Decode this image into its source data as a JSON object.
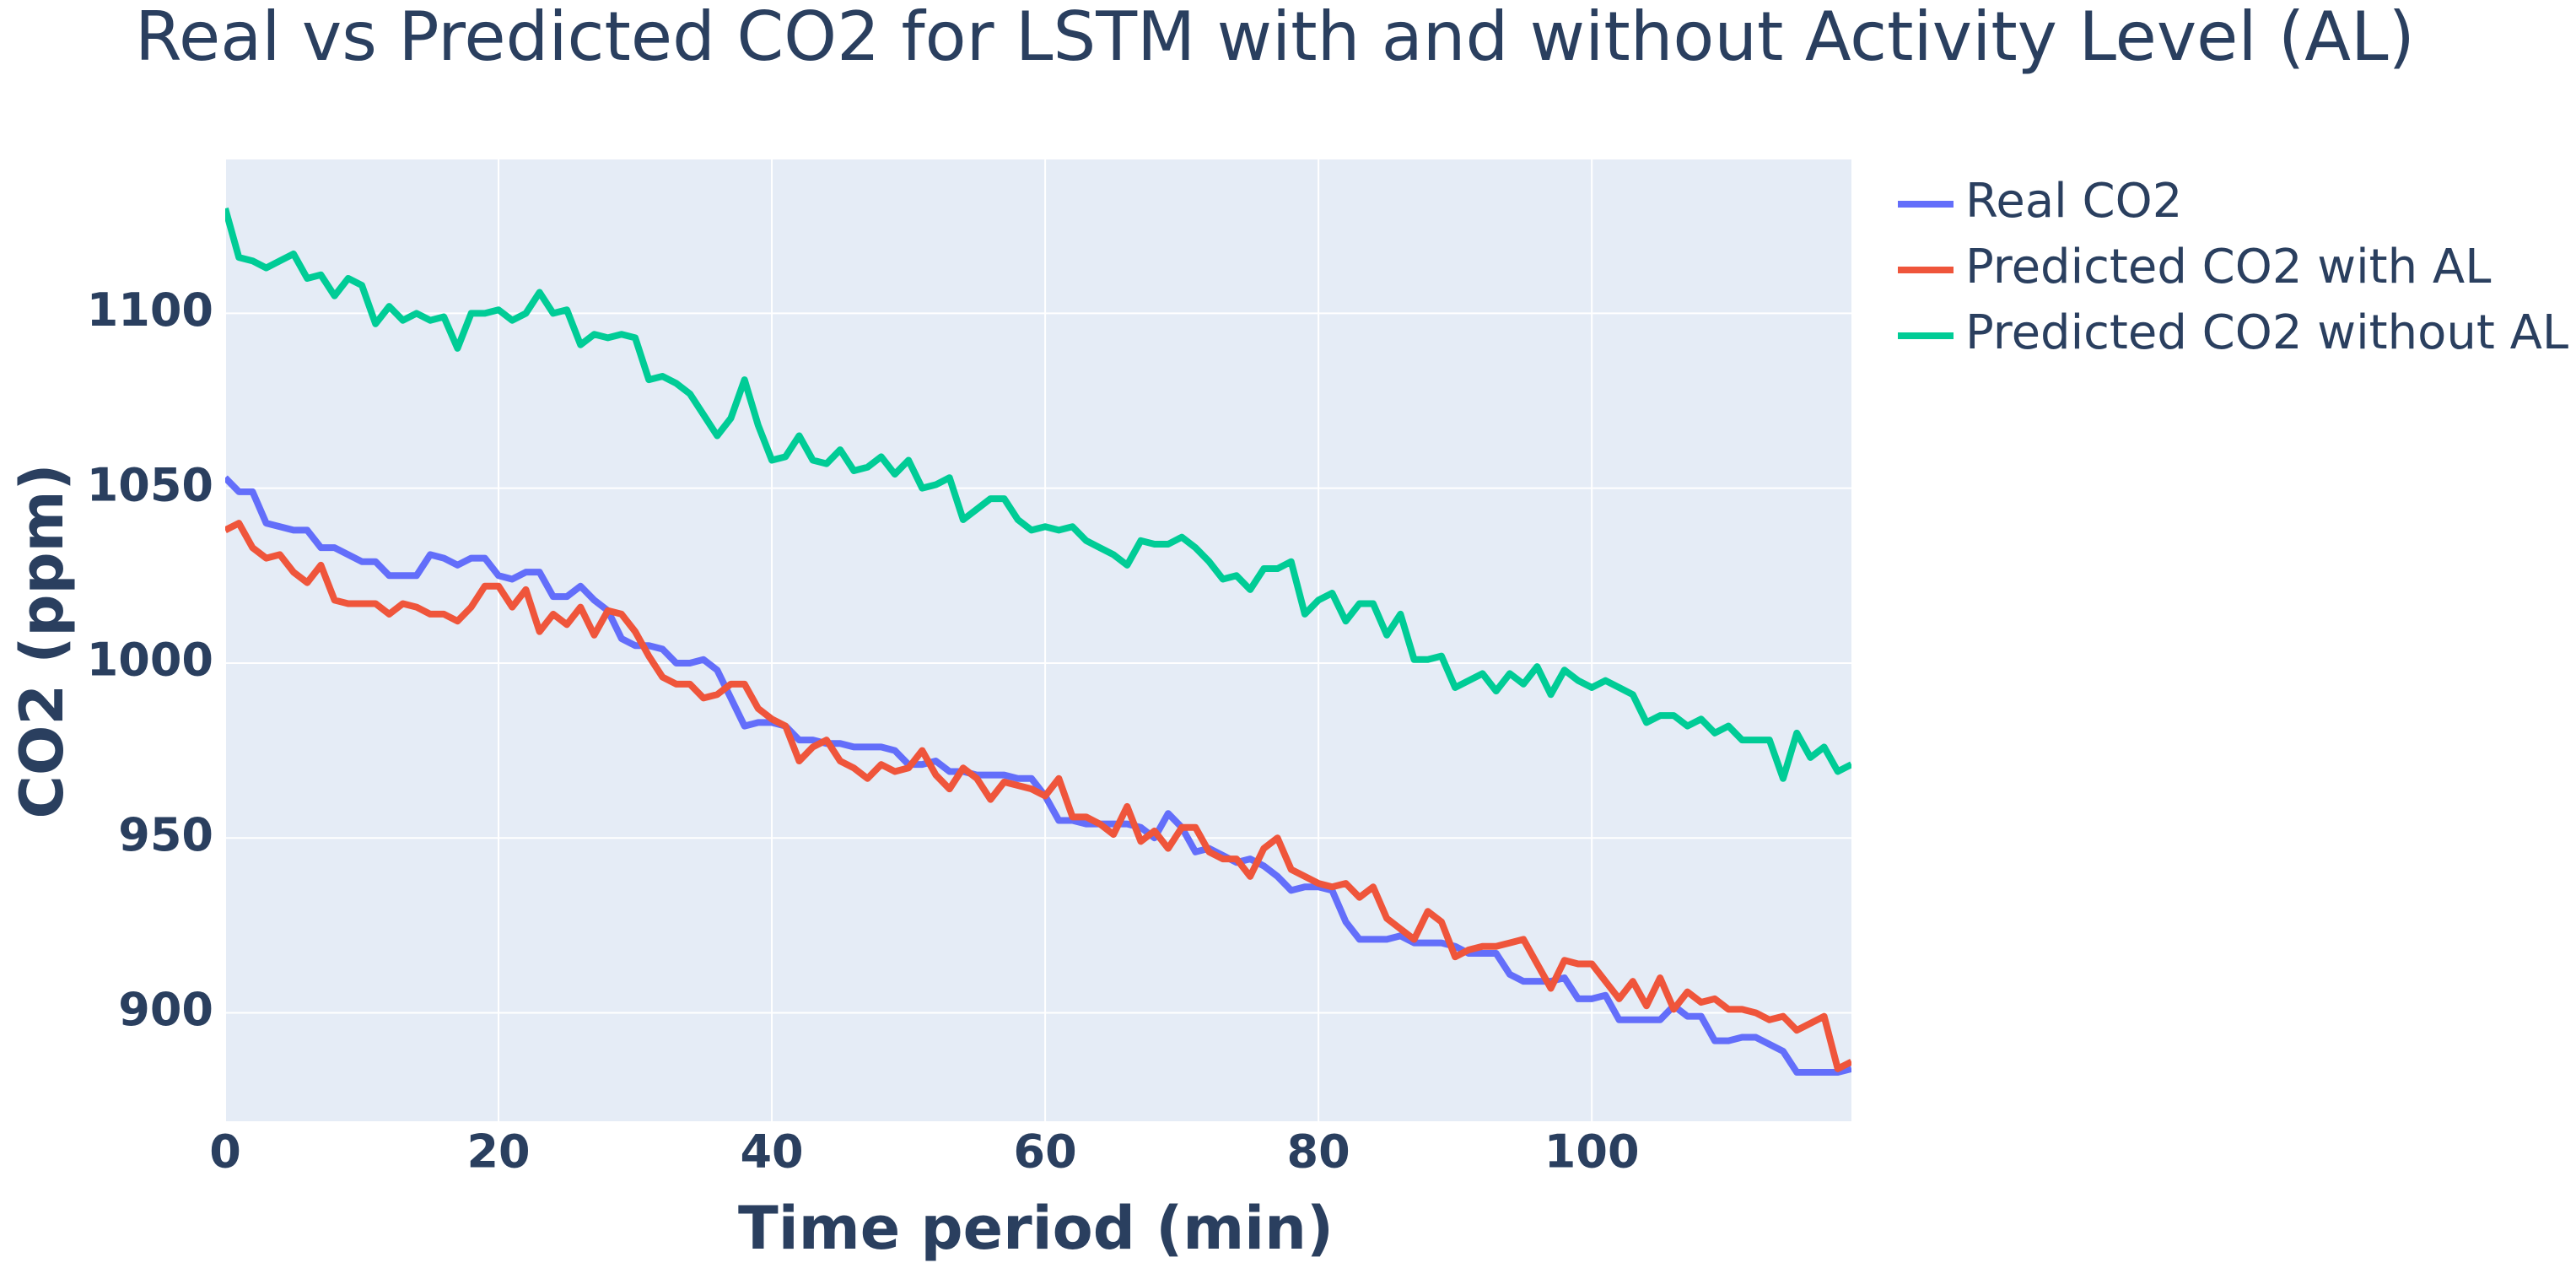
{
  "chart_data": {
    "type": "line",
    "title": "Real vs Predicted CO2 for LSTM with and without Activity Level (AL)",
    "x_label": "Time period (min)",
    "y_label": "CO2 (ppm)",
    "x": [
      0,
      1,
      2,
      3,
      4,
      5,
      6,
      7,
      8,
      9,
      10,
      11,
      12,
      13,
      14,
      15,
      16,
      17,
      18,
      19,
      20,
      21,
      22,
      23,
      24,
      25,
      26,
      27,
      28,
      29,
      30,
      31,
      32,
      33,
      34,
      35,
      36,
      37,
      38,
      39,
      40,
      41,
      42,
      43,
      44,
      45,
      46,
      47,
      48,
      49,
      50,
      51,
      52,
      53,
      54,
      55,
      56,
      57,
      58,
      59,
      60,
      61,
      62,
      63,
      64,
      65,
      66,
      67,
      68,
      69,
      70,
      71,
      72,
      73,
      74,
      75,
      76,
      77,
      78,
      79,
      80,
      81,
      82,
      83,
      84,
      85,
      86,
      87,
      88,
      89,
      90,
      91,
      92,
      93,
      94,
      95,
      96,
      97,
      98,
      99,
      100,
      101,
      102,
      103,
      104,
      105,
      106,
      107,
      108,
      109,
      110,
      111,
      112,
      113,
      114,
      115,
      116,
      117,
      118,
      119
    ],
    "series": [
      {
        "name": "Real CO2",
        "color": "#636efa",
        "values": [
          1053,
          1049,
          1049,
          1040,
          1039,
          1038,
          1038,
          1033,
          1033,
          1031,
          1029,
          1029,
          1025,
          1025,
          1025,
          1031,
          1030,
          1028,
          1030,
          1030,
          1025,
          1024,
          1026,
          1026,
          1019,
          1019,
          1022,
          1018,
          1015,
          1007,
          1005,
          1005,
          1004,
          1000,
          1000,
          1001,
          998,
          990,
          982,
          983,
          983,
          982,
          978,
          978,
          977,
          977,
          976,
          976,
          976,
          975,
          971,
          971,
          972,
          969,
          969,
          968,
          968,
          968,
          967,
          967,
          962,
          955,
          955,
          954,
          954,
          954,
          954,
          953,
          950,
          957,
          953,
          946,
          947,
          945,
          943,
          944,
          942,
          939,
          935,
          936,
          936,
          935,
          926,
          921,
          921,
          921,
          922,
          920,
          920,
          920,
          919,
          917,
          917,
          917,
          911,
          909,
          909,
          909,
          910,
          904,
          904,
          905,
          898,
          898,
          898,
          898,
          902,
          899,
          899,
          892,
          892,
          893,
          893,
          891,
          889,
          883,
          883,
          883,
          883,
          884
        ]
      },
      {
        "name": "Predicted CO2 with AL",
        "color": "#ef553b",
        "values": [
          1038,
          1040,
          1033,
          1030,
          1031,
          1026,
          1023,
          1028,
          1018,
          1017,
          1017,
          1017,
          1014,
          1017,
          1016,
          1014,
          1014,
          1012,
          1016,
          1022,
          1022,
          1016,
          1021,
          1009,
          1014,
          1011,
          1016,
          1008,
          1015,
          1014,
          1009,
          1002,
          996,
          994,
          994,
          990,
          991,
          994,
          994,
          987,
          984,
          982,
          972,
          976,
          978,
          972,
          970,
          967,
          971,
          969,
          970,
          975,
          968,
          964,
          970,
          967,
          961,
          966,
          965,
          964,
          962,
          967,
          956,
          956,
          954,
          951,
          959,
          949,
          952,
          947,
          953,
          953,
          946,
          944,
          944,
          939,
          947,
          950,
          941,
          939,
          937,
          936,
          937,
          933,
          936,
          927,
          924,
          921,
          929,
          926,
          916,
          918,
          919,
          919,
          920,
          921,
          914,
          907,
          915,
          914,
          914,
          909,
          904,
          909,
          902,
          910,
          901,
          906,
          903,
          904,
          901,
          901,
          900,
          898,
          899,
          895,
          897,
          899,
          884,
          886
        ]
      },
      {
        "name": "Predicted CO2 without AL",
        "color": "#00cc96",
        "values": [
          1130,
          1116,
          1115,
          1113,
          1115,
          1117,
          1110,
          1111,
          1105,
          1110,
          1108,
          1097,
          1102,
          1098,
          1100,
          1098,
          1099,
          1090,
          1100,
          1100,
          1101,
          1098,
          1100,
          1106,
          1100,
          1101,
          1091,
          1094,
          1093,
          1094,
          1093,
          1081,
          1082,
          1080,
          1077,
          1071,
          1065,
          1070,
          1081,
          1068,
          1058,
          1059,
          1065,
          1058,
          1057,
          1061,
          1055,
          1056,
          1059,
          1054,
          1058,
          1050,
          1051,
          1053,
          1041,
          1044,
          1047,
          1047,
          1041,
          1038,
          1039,
          1038,
          1039,
          1035,
          1033,
          1031,
          1028,
          1035,
          1034,
          1034,
          1036,
          1033,
          1029,
          1024,
          1025,
          1021,
          1027,
          1027,
          1029,
          1014,
          1018,
          1020,
          1012,
          1017,
          1017,
          1008,
          1014,
          1001,
          1001,
          1002,
          993,
          995,
          997,
          992,
          997,
          994,
          999,
          991,
          998,
          995,
          993,
          995,
          993,
          991,
          983,
          985,
          985,
          982,
          984,
          980,
          982,
          978,
          978,
          978,
          967,
          980,
          973,
          976,
          969,
          971
        ]
      }
    ],
    "xlim": [
      0,
      119
    ],
    "ylim": [
      869,
      1144
    ],
    "xticks": [
      0,
      20,
      40,
      60,
      80,
      100
    ],
    "yticks": [
      900,
      950,
      1000,
      1050,
      1100
    ],
    "grid": true,
    "legend": "outside-right",
    "background": "#e5ecf6"
  }
}
